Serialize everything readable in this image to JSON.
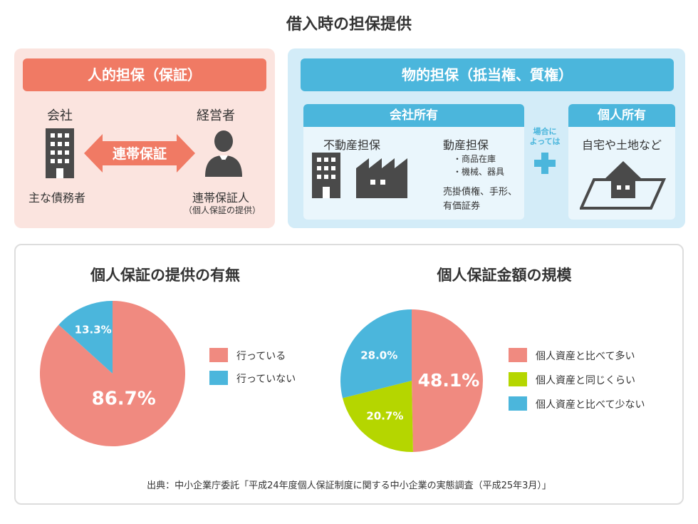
{
  "title": "借入時の担保提供",
  "personal": {
    "header": "人的担保（保証）",
    "company_label": "会社",
    "company_sub": "主な債務者",
    "manager_label": "経営者",
    "guarantor_label": "連帯保証人",
    "guarantor_sub": "（個人保証の提供）",
    "arrow_label": "連帯保証"
  },
  "property": {
    "header": "物的担保（抵当権、質権）",
    "company_box": {
      "header": "会社所有",
      "real_estate": "不動産担保",
      "movable": "動産担保",
      "movable_items": [
        "・商品在庫",
        "・機械、器具"
      ],
      "receivables_line1": "売掛債権、手形、",
      "receivables_line2": "有価証券"
    },
    "connector_line1": "場合に",
    "connector_line2": "よっては",
    "personal_box": {
      "header": "個人所有",
      "text": "自宅や土地など"
    }
  },
  "colors": {
    "salmon": "#f08a80",
    "blue": "#4bb6dc",
    "green": "#b5d600",
    "personal_bg": "#fbe4df",
    "property_bg": "#d3ecf8"
  },
  "chart_data": [
    {
      "type": "pie",
      "title": "個人保証の提供の有無",
      "series": [
        {
          "label": "行っている",
          "value": 86.7,
          "display": "86.7%",
          "color": "#f08a80"
        },
        {
          "label": "行っていない",
          "value": 13.3,
          "display": "13.3%",
          "color": "#4bb6dc"
        }
      ],
      "legend": "right"
    },
    {
      "type": "pie",
      "title": "個人保証金額の規模",
      "series": [
        {
          "label": "個人資産と比べて多い",
          "value": 48.1,
          "display": "48.1%",
          "color": "#f08a80"
        },
        {
          "label": "個人資産と同じくらい",
          "value": 20.7,
          "display": "20.7%",
          "color": "#b5d600"
        },
        {
          "label": "個人資産と比べて少ない",
          "value": 28.0,
          "display": "28.0%",
          "color": "#4bb6dc"
        }
      ],
      "legend": "right"
    }
  ],
  "source": "出典：中小企業庁委託「平成24年度個人保証制度に関する中小企業の実態調査（平成25年3月）」"
}
